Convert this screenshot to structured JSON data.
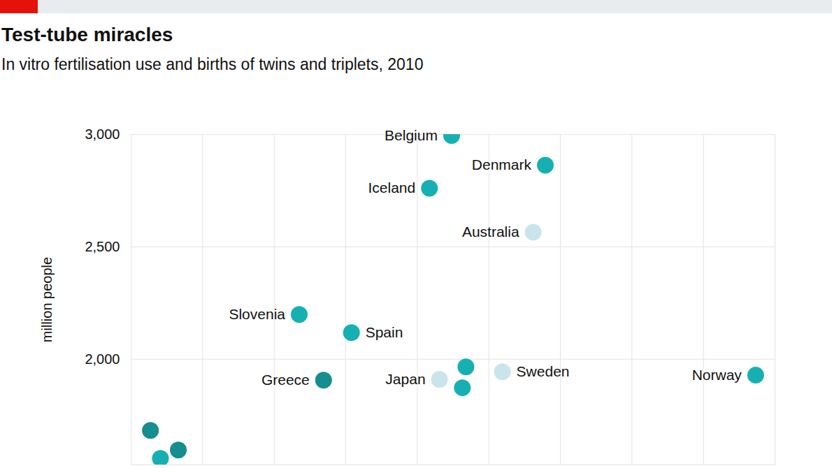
{
  "chart_data": {
    "type": "scatter",
    "title": "Test-tube miracles",
    "subtitle": "In vitro fertilisation use and births of twins and triplets, 2010",
    "y_label": "million people",
    "labels": [
      "Belgium",
      "Denmark",
      "Iceland",
      "Australia",
      "Slovenia",
      "Spain",
      "Greece",
      "Japan",
      null,
      null,
      "Sweden",
      "Norway",
      null,
      null,
      null
    ],
    "x": [
      4.48,
      5.79,
      4.17,
      5.62,
      2.35,
      3.08,
      2.69,
      4.31,
      4.68,
      4.63,
      5.19,
      8.73,
      0.27,
      0.41,
      0.66
    ],
    "values": [
      2995,
      2863,
      2761,
      2565,
      2199,
      2118,
      1907,
      1910,
      1966,
      1873,
      1944,
      1929,
      1683,
      1559,
      1596
    ],
    "colors": [
      "#17b0b2",
      "#17b0b2",
      "#17b0b2",
      "#c9e5eb",
      "#17b0b2",
      "#17b0b2",
      "#168d8e",
      "#c9e5eb",
      "#17b0b2",
      "#17b0b2",
      "#c9e5eb",
      "#17b0b2",
      "#168d8e",
      "#17b0b2",
      "#168d8e"
    ],
    "xlim": [
      0,
      9
    ],
    "xticks": [
      0,
      1,
      2,
      3,
      4,
      5,
      6,
      7,
      8,
      9
    ],
    "ylim": [
      1530,
      3000
    ],
    "yticks": [
      {
        "value": 2000,
        "label": "2,000"
      },
      {
        "value": 2500,
        "label": "2,500"
      },
      {
        "value": 3000,
        "label": "3,000"
      }
    ],
    "grid": true,
    "tick_labels": "y"
  }
}
